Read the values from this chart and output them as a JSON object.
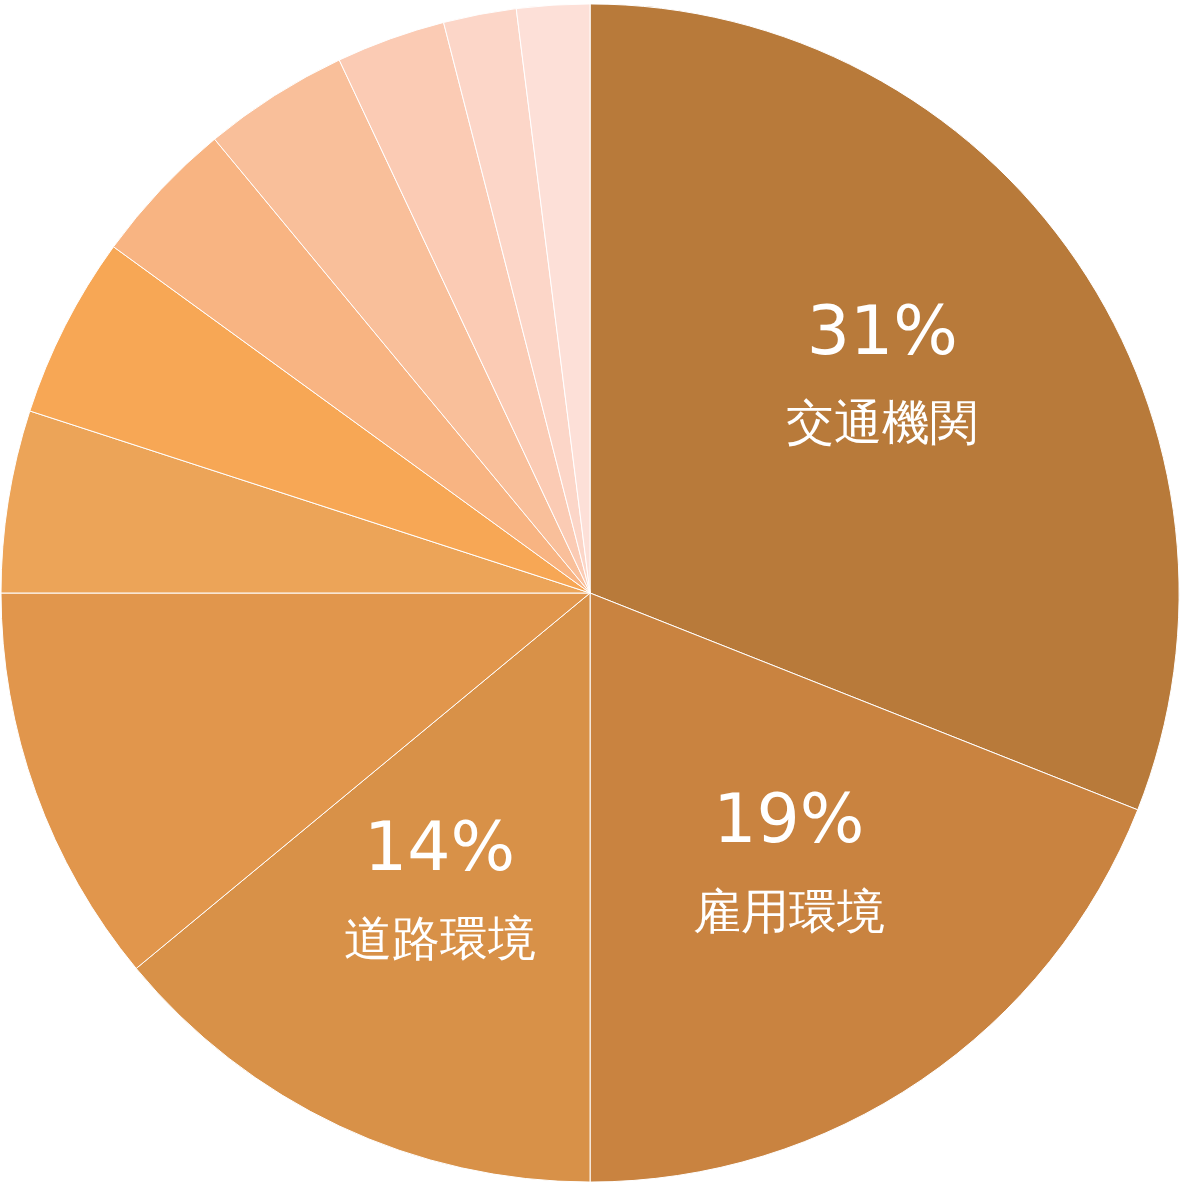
{
  "chart_data": {
    "type": "pie",
    "categories": [
      "交通機関",
      "雇用環境",
      "道路環境",
      null,
      null,
      null,
      null,
      null,
      null,
      null,
      null
    ],
    "values": [
      31,
      19,
      14,
      11,
      5,
      5,
      4,
      4,
      3,
      2,
      2
    ],
    "value_labels": [
      "31%",
      "19%",
      "14%",
      null,
      null,
      null,
      null,
      null,
      null,
      null,
      null
    ],
    "colors": [
      "#b87a3a",
      "#c98340",
      "#d89148",
      "#e1964c",
      "#eca458",
      "#f7a755",
      "#f8b482",
      "#f9bf9a",
      "#fbcbb4",
      "#fcd6c8",
      "#fde0d8"
    ]
  }
}
